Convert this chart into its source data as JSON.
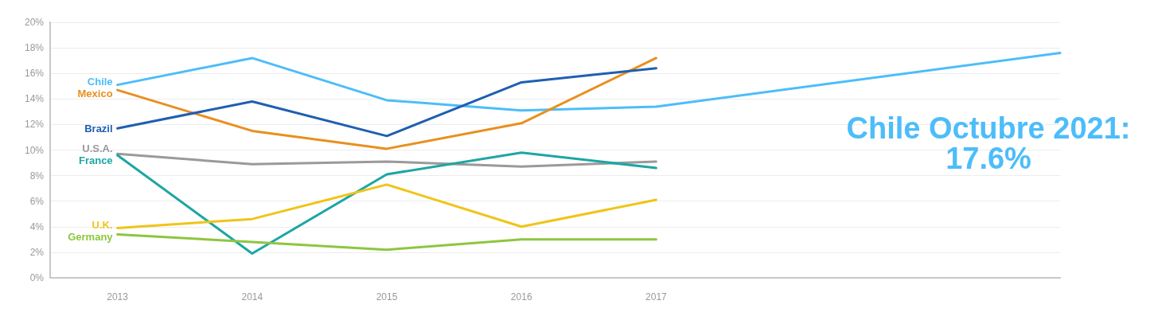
{
  "chart_data": {
    "type": "line",
    "x": [
      2013,
      2014,
      2015,
      2016,
      2017
    ],
    "xlim": [
      2012.5,
      2020
    ],
    "xticks": [
      2013,
      2014,
      2015,
      2016,
      2017
    ],
    "ylim": [
      0,
      20
    ],
    "yticks": [
      {
        "value": 0,
        "label": "0%"
      },
      {
        "value": 2,
        "label": "2%"
      },
      {
        "value": 4,
        "label": "4%"
      },
      {
        "value": 6,
        "label": "6%"
      },
      {
        "value": 8,
        "label": "8%"
      },
      {
        "value": 10,
        "label": "10%"
      },
      {
        "value": 12,
        "label": "12%"
      },
      {
        "value": 14,
        "label": "14%"
      },
      {
        "value": 16,
        "label": "16%"
      },
      {
        "value": 18,
        "label": "18%"
      },
      {
        "value": 20,
        "label": "20%"
      }
    ],
    "grid": "y",
    "legend": false,
    "marker": "none",
    "line_style": "solid",
    "series": [
      {
        "name": "Chile",
        "color": "#4dbdf9",
        "x": [
          2013,
          2014,
          2015,
          2016,
          2017,
          2020
        ],
        "values": [
          15.1,
          17.2,
          13.9,
          13.1,
          13.4,
          17.6
        ]
      },
      {
        "name": "Mexico",
        "color": "#e8901f",
        "values": [
          14.7,
          11.5,
          10.1,
          12.1,
          17.2
        ]
      },
      {
        "name": "Brazil",
        "color": "#1f5fb0",
        "values": [
          11.7,
          13.8,
          11.1,
          15.3,
          16.4
        ]
      },
      {
        "name": "U.S.A.",
        "color": "#9a9a9a",
        "values": [
          9.7,
          8.9,
          9.1,
          8.7,
          9.1
        ]
      },
      {
        "name": "France",
        "color": "#1ea5a5",
        "values": [
          9.6,
          1.9,
          8.1,
          9.8,
          8.6
        ]
      },
      {
        "name": "U.K.",
        "color": "#f0c419",
        "values": [
          3.9,
          4.6,
          7.3,
          4.0,
          6.1
        ]
      },
      {
        "name": "Germany",
        "color": "#8dc63f",
        "values": [
          3.4,
          2.8,
          2.2,
          3.0,
          3.0
        ]
      }
    ],
    "annotations": [
      {
        "text": "Chile Octubre 2021:\n17.6%",
        "x": 2020,
        "y": 17.6
      }
    ]
  }
}
